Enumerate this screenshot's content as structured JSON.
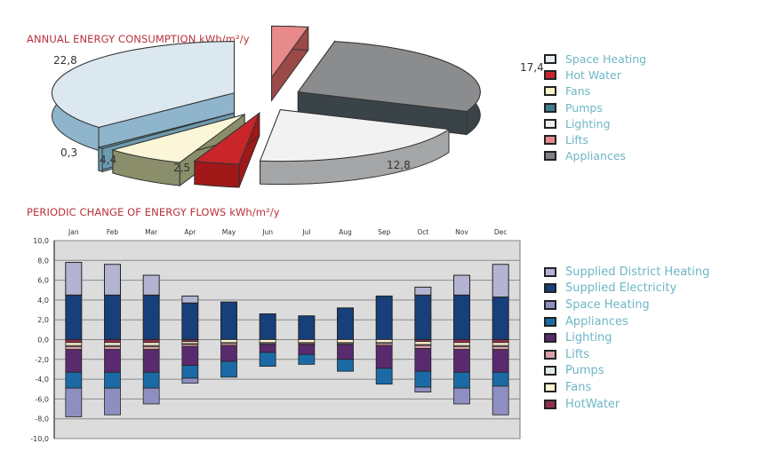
{
  "chart_data": [
    {
      "type": "pie",
      "title": "ANNUAL ENERGY CONSUMPTION kWh/m²/y",
      "slices": [
        {
          "name": "Lifts",
          "value": 2.0,
          "label": "2,0",
          "color": "#e88a8a",
          "side": "#9a4a48"
        },
        {
          "name": "Appliances",
          "value": 17.4,
          "label": "17,4",
          "color": "#8a8c8e",
          "side": "#3a4448"
        },
        {
          "name": "Lighting",
          "value": 12.8,
          "label": "12,8",
          "color": "#f2f2f2",
          "side": "#a4a6a8"
        },
        {
          "name": "Hot Water",
          "value": 2.5,
          "label": "2,5",
          "color": "#c8262a",
          "side": "#a01818"
        },
        {
          "name": "Fans",
          "value": 4.4,
          "label": "4,4",
          "color": "#fbf6d8",
          "side": "#8a8e6a"
        },
        {
          "name": "Pumps",
          "value": 0.3,
          "label": "0,3",
          "color": "#5a8a9a",
          "side": "#6d9bb0"
        },
        {
          "name": "Space Heating",
          "value": 22.8,
          "label": "22,8",
          "color": "#dce8f0",
          "side": "#8fb5cc"
        }
      ],
      "legend": [
        {
          "label": "Space Heating",
          "color": "#e8edf2"
        },
        {
          "label": "Hot Water",
          "color": "#c8262a"
        },
        {
          "label": "Fans",
          "color": "#fbf3c8"
        },
        {
          "label": "Pumps",
          "color": "#3e7c8e"
        },
        {
          "label": "Lighting",
          "color": "#eeeeee"
        },
        {
          "label": "Lifts",
          "color": "#e88a8a"
        },
        {
          "label": "Appliances",
          "color": "#7e8286"
        }
      ],
      "legend_position": "right"
    },
    {
      "type": "bar",
      "stacked": true,
      "title": "PERIODIC CHANGE OF ENERGY FLOWS kWh/m²/y",
      "categories": [
        "Jan",
        "Feb",
        "Mar",
        "Apr",
        "May",
        "Jun",
        "Jul",
        "Aug",
        "Sep",
        "Oct",
        "Nov",
        "Dec"
      ],
      "ylim": [
        -10,
        10
      ],
      "yticks": [
        "10,0",
        "8,0",
        "6,0",
        "4,0",
        "2,0",
        "0,0",
        "-2,0",
        "-4,0",
        "-6,0",
        "-8,0",
        "-10,0"
      ],
      "ytick_values": [
        10,
        8,
        6,
        4,
        2,
        0,
        -2,
        -4,
        -6,
        -8,
        -10
      ],
      "grid": true,
      "series": [
        {
          "name": "Supplied District Heating",
          "color": "#b4b4d2",
          "values": [
            3.3,
            3.1,
            2.0,
            0.7,
            0,
            0,
            0,
            0,
            0,
            0.8,
            2.0,
            3.3
          ]
        },
        {
          "name": "Supplied Electricity",
          "color": "#173f7a",
          "values": [
            4.5,
            4.5,
            4.5,
            3.7,
            3.8,
            2.6,
            2.4,
            3.2,
            4.4,
            4.5,
            4.5,
            4.3
          ]
        },
        {
          "name": "Space Heating",
          "color": "#8e8fc0",
          "values": [
            -2.9,
            -2.7,
            -1.6,
            -0.5,
            0,
            0,
            0,
            0,
            0,
            -0.5,
            -1.6,
            -2.9
          ]
        },
        {
          "name": "Appliances",
          "color": "#1b6aa5",
          "values": [
            -1.6,
            -1.6,
            -1.6,
            -1.3,
            -1.6,
            -1.4,
            -1.0,
            -1.2,
            -1.6,
            -1.6,
            -1.6,
            -1.4
          ]
        },
        {
          "name": "Lighting",
          "color": "#5a2a6e",
          "values": [
            -2.3,
            -2.3,
            -2.3,
            -1.9,
            -1.6,
            -0.8,
            -1.0,
            -1.5,
            -2.3,
            -2.3,
            -2.3,
            -2.3
          ]
        },
        {
          "name": "Lifts",
          "color": "#d9a0a8",
          "values": [
            -0.3,
            -0.3,
            -0.3,
            -0.2,
            -0.2,
            -0.1,
            -0.1,
            -0.1,
            -0.2,
            -0.3,
            -0.3,
            -0.3
          ]
        },
        {
          "name": "Pumps",
          "color": "#dfeaea",
          "values": [
            -0.1,
            -0.1,
            -0.1,
            -0.1,
            -0.1,
            -0.1,
            -0.1,
            -0.1,
            -0.1,
            -0.1,
            -0.1,
            -0.1
          ]
        },
        {
          "name": "Fans",
          "color": "#fff4d2",
          "values": [
            -0.3,
            -0.3,
            -0.3,
            -0.2,
            -0.3,
            -0.3,
            -0.3,
            -0.3,
            -0.3,
            -0.3,
            -0.3,
            -0.3
          ]
        },
        {
          "name": "HotWater",
          "color": "#8e2f4e",
          "values": [
            -0.3,
            -0.3,
            -0.3,
            -0.2,
            0,
            0,
            0,
            0,
            0,
            -0.2,
            -0.3,
            -0.3
          ]
        }
      ],
      "legend_position": "right"
    }
  ]
}
